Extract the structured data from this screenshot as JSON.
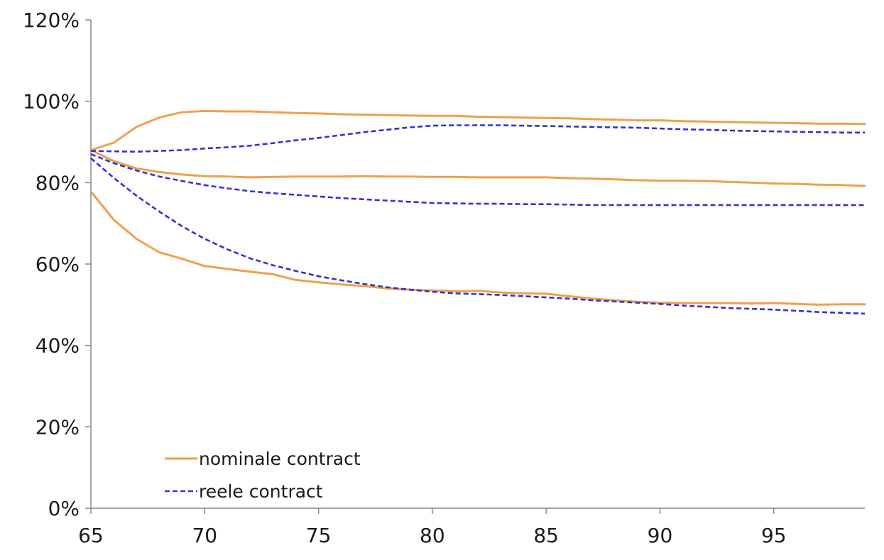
{
  "chart_data": {
    "type": "line",
    "title": "",
    "xlabel": "",
    "ylabel": "",
    "xlim": [
      65,
      99
    ],
    "ylim": [
      0,
      1.2
    ],
    "x_ticks": [
      65,
      70,
      75,
      80,
      85,
      90,
      95
    ],
    "x_tick_labels": [
      "65",
      "70",
      "75",
      "80",
      "85",
      "90",
      "95"
    ],
    "y_ticks": [
      0,
      0.2,
      0.4,
      0.6,
      0.8,
      1.0,
      1.2
    ],
    "y_tick_labels": [
      "0%",
      "20%",
      "40%",
      "60%",
      "80%",
      "100%",
      "120%"
    ],
    "grid": false,
    "legend": {
      "placement": "bottom-left",
      "entries": [
        {
          "label": "nominale contract",
          "color": "#F0A04B",
          "style": "solid"
        },
        {
          "label": "reele contract",
          "color": "#3333CC",
          "style": "dashed"
        }
      ]
    },
    "x": [
      65,
      66,
      67,
      68,
      69,
      70,
      71,
      72,
      73,
      74,
      75,
      76,
      77,
      78,
      79,
      80,
      81,
      82,
      83,
      84,
      85,
      86,
      87,
      88,
      89,
      90,
      91,
      92,
      93,
      94,
      95,
      96,
      97,
      98,
      99
    ],
    "series": [
      {
        "group": "nominale contract",
        "color": "#F0A04B",
        "style": "solid",
        "values": [
          0.88,
          0.898,
          0.937,
          0.96,
          0.973,
          0.976,
          0.975,
          0.975,
          0.973,
          0.971,
          0.97,
          0.968,
          0.967,
          0.966,
          0.965,
          0.964,
          0.964,
          0.962,
          0.961,
          0.96,
          0.959,
          0.958,
          0.956,
          0.955,
          0.953,
          0.953,
          0.951,
          0.95,
          0.949,
          0.948,
          0.947,
          0.946,
          0.945,
          0.945,
          0.944
        ]
      },
      {
        "group": "nominale contract",
        "color": "#F0A04B",
        "style": "solid",
        "values": [
          0.88,
          0.853,
          0.835,
          0.826,
          0.82,
          0.816,
          0.815,
          0.813,
          0.814,
          0.815,
          0.815,
          0.815,
          0.816,
          0.815,
          0.815,
          0.814,
          0.814,
          0.813,
          0.813,
          0.813,
          0.813,
          0.811,
          0.81,
          0.808,
          0.806,
          0.805,
          0.805,
          0.804,
          0.802,
          0.8,
          0.798,
          0.797,
          0.795,
          0.794,
          0.792
        ]
      },
      {
        "group": "nominale contract",
        "color": "#F0A04B",
        "style": "solid",
        "values": [
          0.778,
          0.709,
          0.662,
          0.629,
          0.613,
          0.595,
          0.588,
          0.581,
          0.575,
          0.561,
          0.555,
          0.55,
          0.546,
          0.54,
          0.537,
          0.535,
          0.533,
          0.534,
          0.53,
          0.528,
          0.527,
          0.521,
          0.515,
          0.511,
          0.507,
          0.505,
          0.504,
          0.504,
          0.504,
          0.503,
          0.504,
          0.502,
          0.5,
          0.501,
          0.501
        ]
      },
      {
        "group": "reele contract",
        "color": "#3333CC",
        "style": "dashed",
        "values": [
          0.878,
          0.877,
          0.876,
          0.878,
          0.88,
          0.884,
          0.887,
          0.891,
          0.897,
          0.904,
          0.91,
          0.917,
          0.924,
          0.93,
          0.936,
          0.94,
          0.941,
          0.941,
          0.941,
          0.94,
          0.939,
          0.938,
          0.937,
          0.936,
          0.935,
          0.933,
          0.931,
          0.93,
          0.928,
          0.927,
          0.926,
          0.925,
          0.924,
          0.923,
          0.923
        ]
      },
      {
        "group": "reele contract",
        "color": "#3333CC",
        "style": "dashed",
        "values": [
          0.87,
          0.848,
          0.83,
          0.815,
          0.804,
          0.794,
          0.786,
          0.779,
          0.774,
          0.77,
          0.766,
          0.762,
          0.759,
          0.756,
          0.753,
          0.75,
          0.749,
          0.748,
          0.748,
          0.747,
          0.747,
          0.746,
          0.745,
          0.745,
          0.745,
          0.745,
          0.745,
          0.745,
          0.745,
          0.745,
          0.745,
          0.745,
          0.745,
          0.745,
          0.745
        ]
      },
      {
        "group": "reele contract",
        "color": "#3333CC",
        "style": "dashed",
        "values": [
          0.86,
          0.812,
          0.768,
          0.729,
          0.693,
          0.662,
          0.636,
          0.614,
          0.597,
          0.583,
          0.57,
          0.56,
          0.551,
          0.543,
          0.537,
          0.532,
          0.528,
          0.526,
          0.524,
          0.521,
          0.518,
          0.515,
          0.511,
          0.508,
          0.505,
          0.502,
          0.498,
          0.495,
          0.492,
          0.49,
          0.488,
          0.485,
          0.482,
          0.48,
          0.478
        ]
      }
    ]
  }
}
